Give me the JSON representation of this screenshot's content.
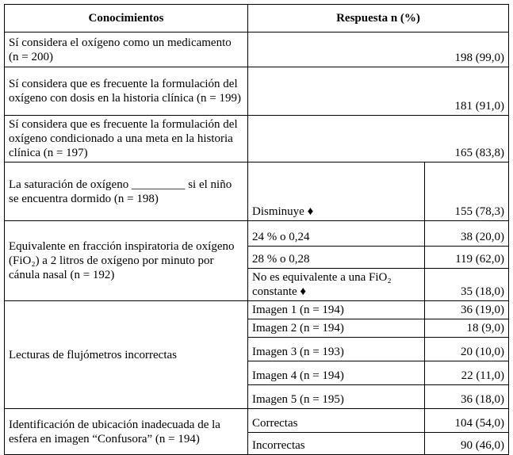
{
  "header": [
    "Conocimientos",
    "Respuesta n (%)"
  ],
  "rows": [
    {
      "label": "Sí considera el oxígeno como un medicamento (n = 200)",
      "value": "198 (99,0)"
    },
    {
      "label": "Sí considera que es frecuente la formulación del oxígeno con dosis en la historia clínica (n = 199)",
      "value": "181 (91,0)"
    },
    {
      "label": "Sí considera que es frecuente la formulación del oxígeno condicionado a una meta en la historia clínica (n = 197)",
      "value": "165 (83,8)"
    },
    {
      "label": "La saturación de oxígeno _________ si el niño se encuentra dormido (n = 198)",
      "options": [
        {
          "option": "Disminuye ♦",
          "value": "155 (78,3)"
        }
      ]
    },
    {
      "label": "Equivalente en fracción inspiratoria de oxígeno (FiO₂) a 2 litros de oxígeno por minuto por cánula nasal (n = 192)",
      "options": [
        {
          "option": "24 % o 0,24",
          "value": "38 (20,0)"
        },
        {
          "option": "28 % o 0,28",
          "value": "119 (62,0)"
        },
        {
          "option": "No es equivalente a una FiO₂ constante ♦",
          "value": "35 (18,0)"
        }
      ]
    },
    {
      "label": "Lecturas de flujómetros incorrectas",
      "options": [
        {
          "option": "Imagen 1 (n = 194)",
          "value": "36 (19,0)"
        },
        {
          "option": "Imagen 2 (n = 194)",
          "value": "18 (9,0)"
        },
        {
          "option": "Imagen 3 (n = 193)",
          "value": "20 (10,0)"
        },
        {
          "option": "Imagen 4 (n = 194)",
          "value": "22 (11,0)"
        },
        {
          "option": "Imagen 5 (n = 195)",
          "value": "36 (18,0)"
        }
      ]
    },
    {
      "label": "Identificación de ubicación inadecuada de la esfera en imagen “Confusora” (n = 194)",
      "options": [
        {
          "option": "Correctas",
          "value": "104 (54,0)"
        },
        {
          "option": "Incorrectas",
          "value": "90 (46,0)"
        }
      ]
    }
  ]
}
